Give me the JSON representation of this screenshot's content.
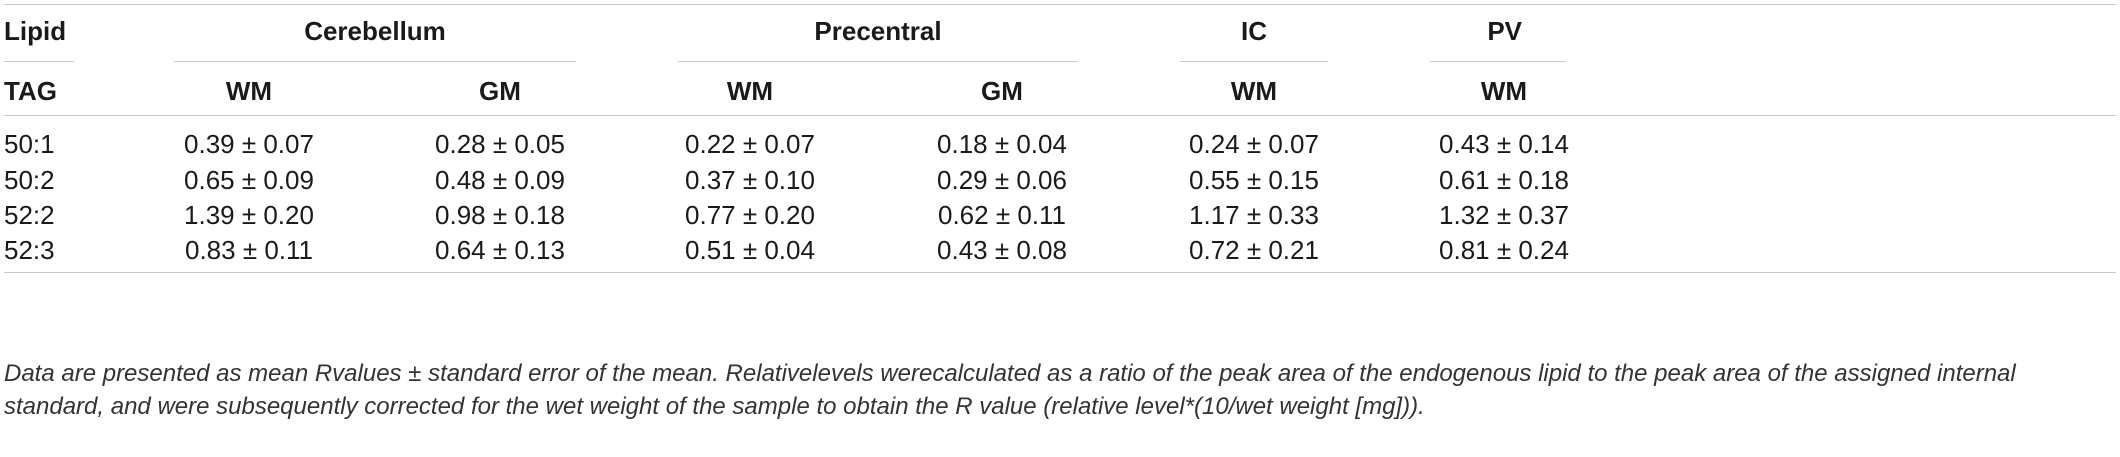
{
  "header": {
    "top": [
      "Lipid",
      "Cerebellum",
      "Precentral",
      "IC",
      "PV"
    ],
    "sub": [
      "TAG",
      "WM",
      "GM",
      "WM",
      "GM",
      "WM",
      "WM"
    ]
  },
  "rows": [
    {
      "label": "50:1",
      "values": [
        "0.39 ± 0.07",
        "0.28 ± 0.05",
        "0.22 ± 0.07",
        "0.18 ± 0.04",
        "0.24 ± 0.07",
        "0.43 ± 0.14"
      ]
    },
    {
      "label": "50:2",
      "values": [
        "0.65 ± 0.09",
        "0.48 ± 0.09",
        "0.37 ± 0.10",
        "0.29 ± 0.06",
        "0.55 ± 0.15",
        "0.61 ± 0.18"
      ]
    },
    {
      "label": "52:2",
      "values": [
        "1.39 ± 0.20",
        "0.98 ± 0.18",
        "0.77 ± 0.20",
        "0.62 ± 0.11",
        "1.17 ± 0.33",
        "1.32 ± 0.37"
      ]
    },
    {
      "label": "52:3",
      "values": [
        "0.83 ± 0.11",
        "0.64 ± 0.13",
        "0.51 ± 0.04",
        "0.43 ± 0.08",
        "0.72 ± 0.21",
        "0.81 ± 0.24"
      ]
    }
  ],
  "footnote": "Data are presented as mean Rvalues ± standard error of the mean. Relativelevels werecalculated as a ratio of the peak area of the endogenous lipid to the peak area of the assigned internal standard, and were subsequently corrected for the wet weight of the sample to obtain the R value (relative level*(10/wet weight [mg]))."
}
